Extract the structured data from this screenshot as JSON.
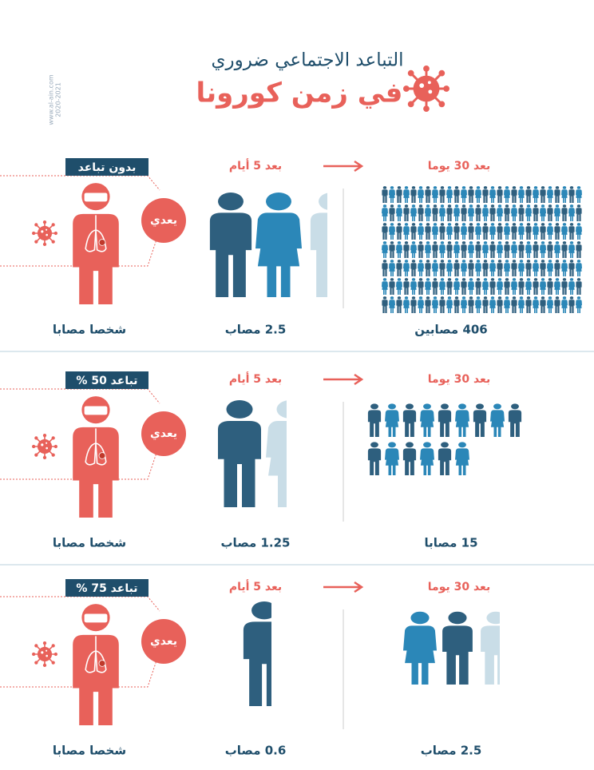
{
  "header": {
    "title": "التباعد الاجتماعي ضروري",
    "subtitle": "في زمن كورونا",
    "watermark": "www.al-ain.com",
    "years": "2020-2021"
  },
  "rows": [
    {
      "badge": "بدون تباعد",
      "infects": "يعدي",
      "person": "شخصا مصابا",
      "after_5": "بعد 5 أيام",
      "after_5_count": "2.5 مصاب",
      "after_30": "بعد 30 يوما",
      "after_30_count": "406 مصابين"
    },
    {
      "badge": "تباعد 50 %",
      "infects": "يعدي",
      "person": "شخصا مصابا",
      "after_5": "بعد 5 أيام",
      "after_5_count": "1.25 مصاب",
      "after_30": "بعد 30 يوما",
      "after_30_count": "15 مصابا"
    },
    {
      "badge": "تباعد 75 %",
      "infects": "يعدي",
      "person": "شخصا مصابا",
      "after_5": "بعد 5 أيام",
      "after_5_count": "0.6 مصاب",
      "after_30": "بعد 30 يوما",
      "after_30_count": "2.5 مصاب"
    }
  ]
}
